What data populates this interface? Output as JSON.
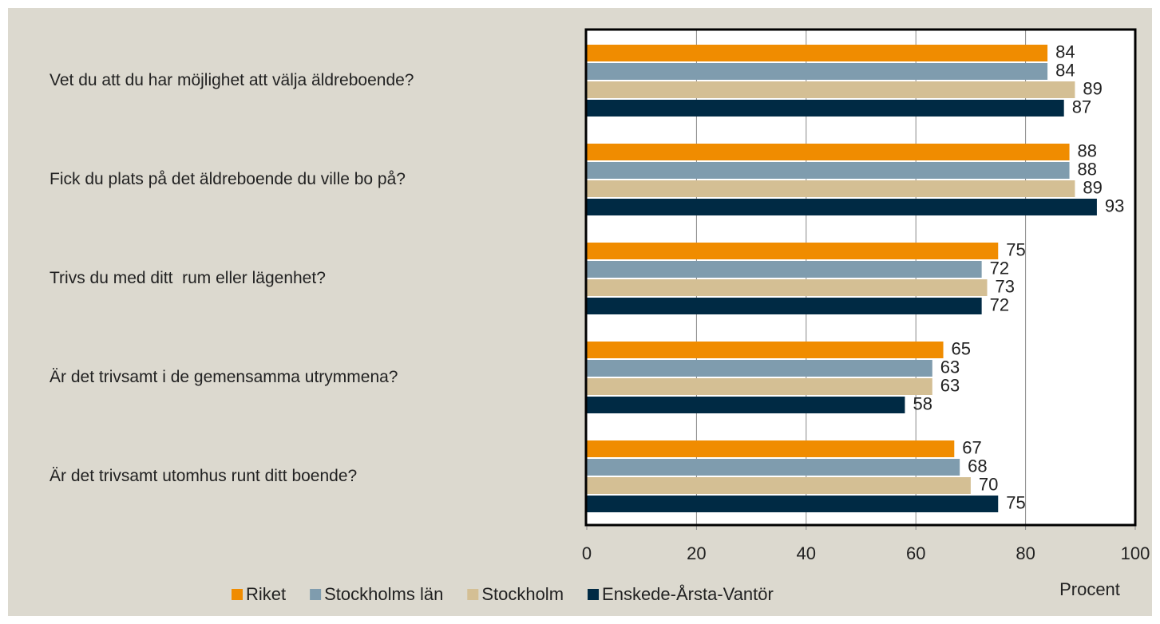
{
  "chart_data": {
    "type": "barh",
    "categories": [
      "Vet du att du har möjlighet att välja äldreboende?",
      "Fick du plats på det äldreboende du ville bo på?",
      "Trivs du med ditt  rum eller lägenhet?",
      "Är det trivsamt i de gemensamma utrymmena?",
      "Är det trivsamt utomhus runt ditt boende?"
    ],
    "series": [
      {
        "name": "Riket",
        "color": "#f08c00",
        "values": [
          84,
          88,
          75,
          65,
          67
        ]
      },
      {
        "name": "Stockholms län",
        "color": "#7f9cae",
        "values": [
          84,
          88,
          72,
          63,
          68
        ]
      },
      {
        "name": "Stockholm",
        "color": "#d4bf94",
        "values": [
          89,
          89,
          73,
          63,
          70
        ]
      },
      {
        "name": "Enskede-Årsta-Vantör",
        "color": "#002a44",
        "values": [
          87,
          93,
          72,
          58,
          75
        ]
      }
    ],
    "xlim": [
      0,
      100
    ],
    "xticks": [
      0,
      20,
      40,
      60,
      80,
      100
    ],
    "xlabel": "Procent",
    "grid": true
  }
}
